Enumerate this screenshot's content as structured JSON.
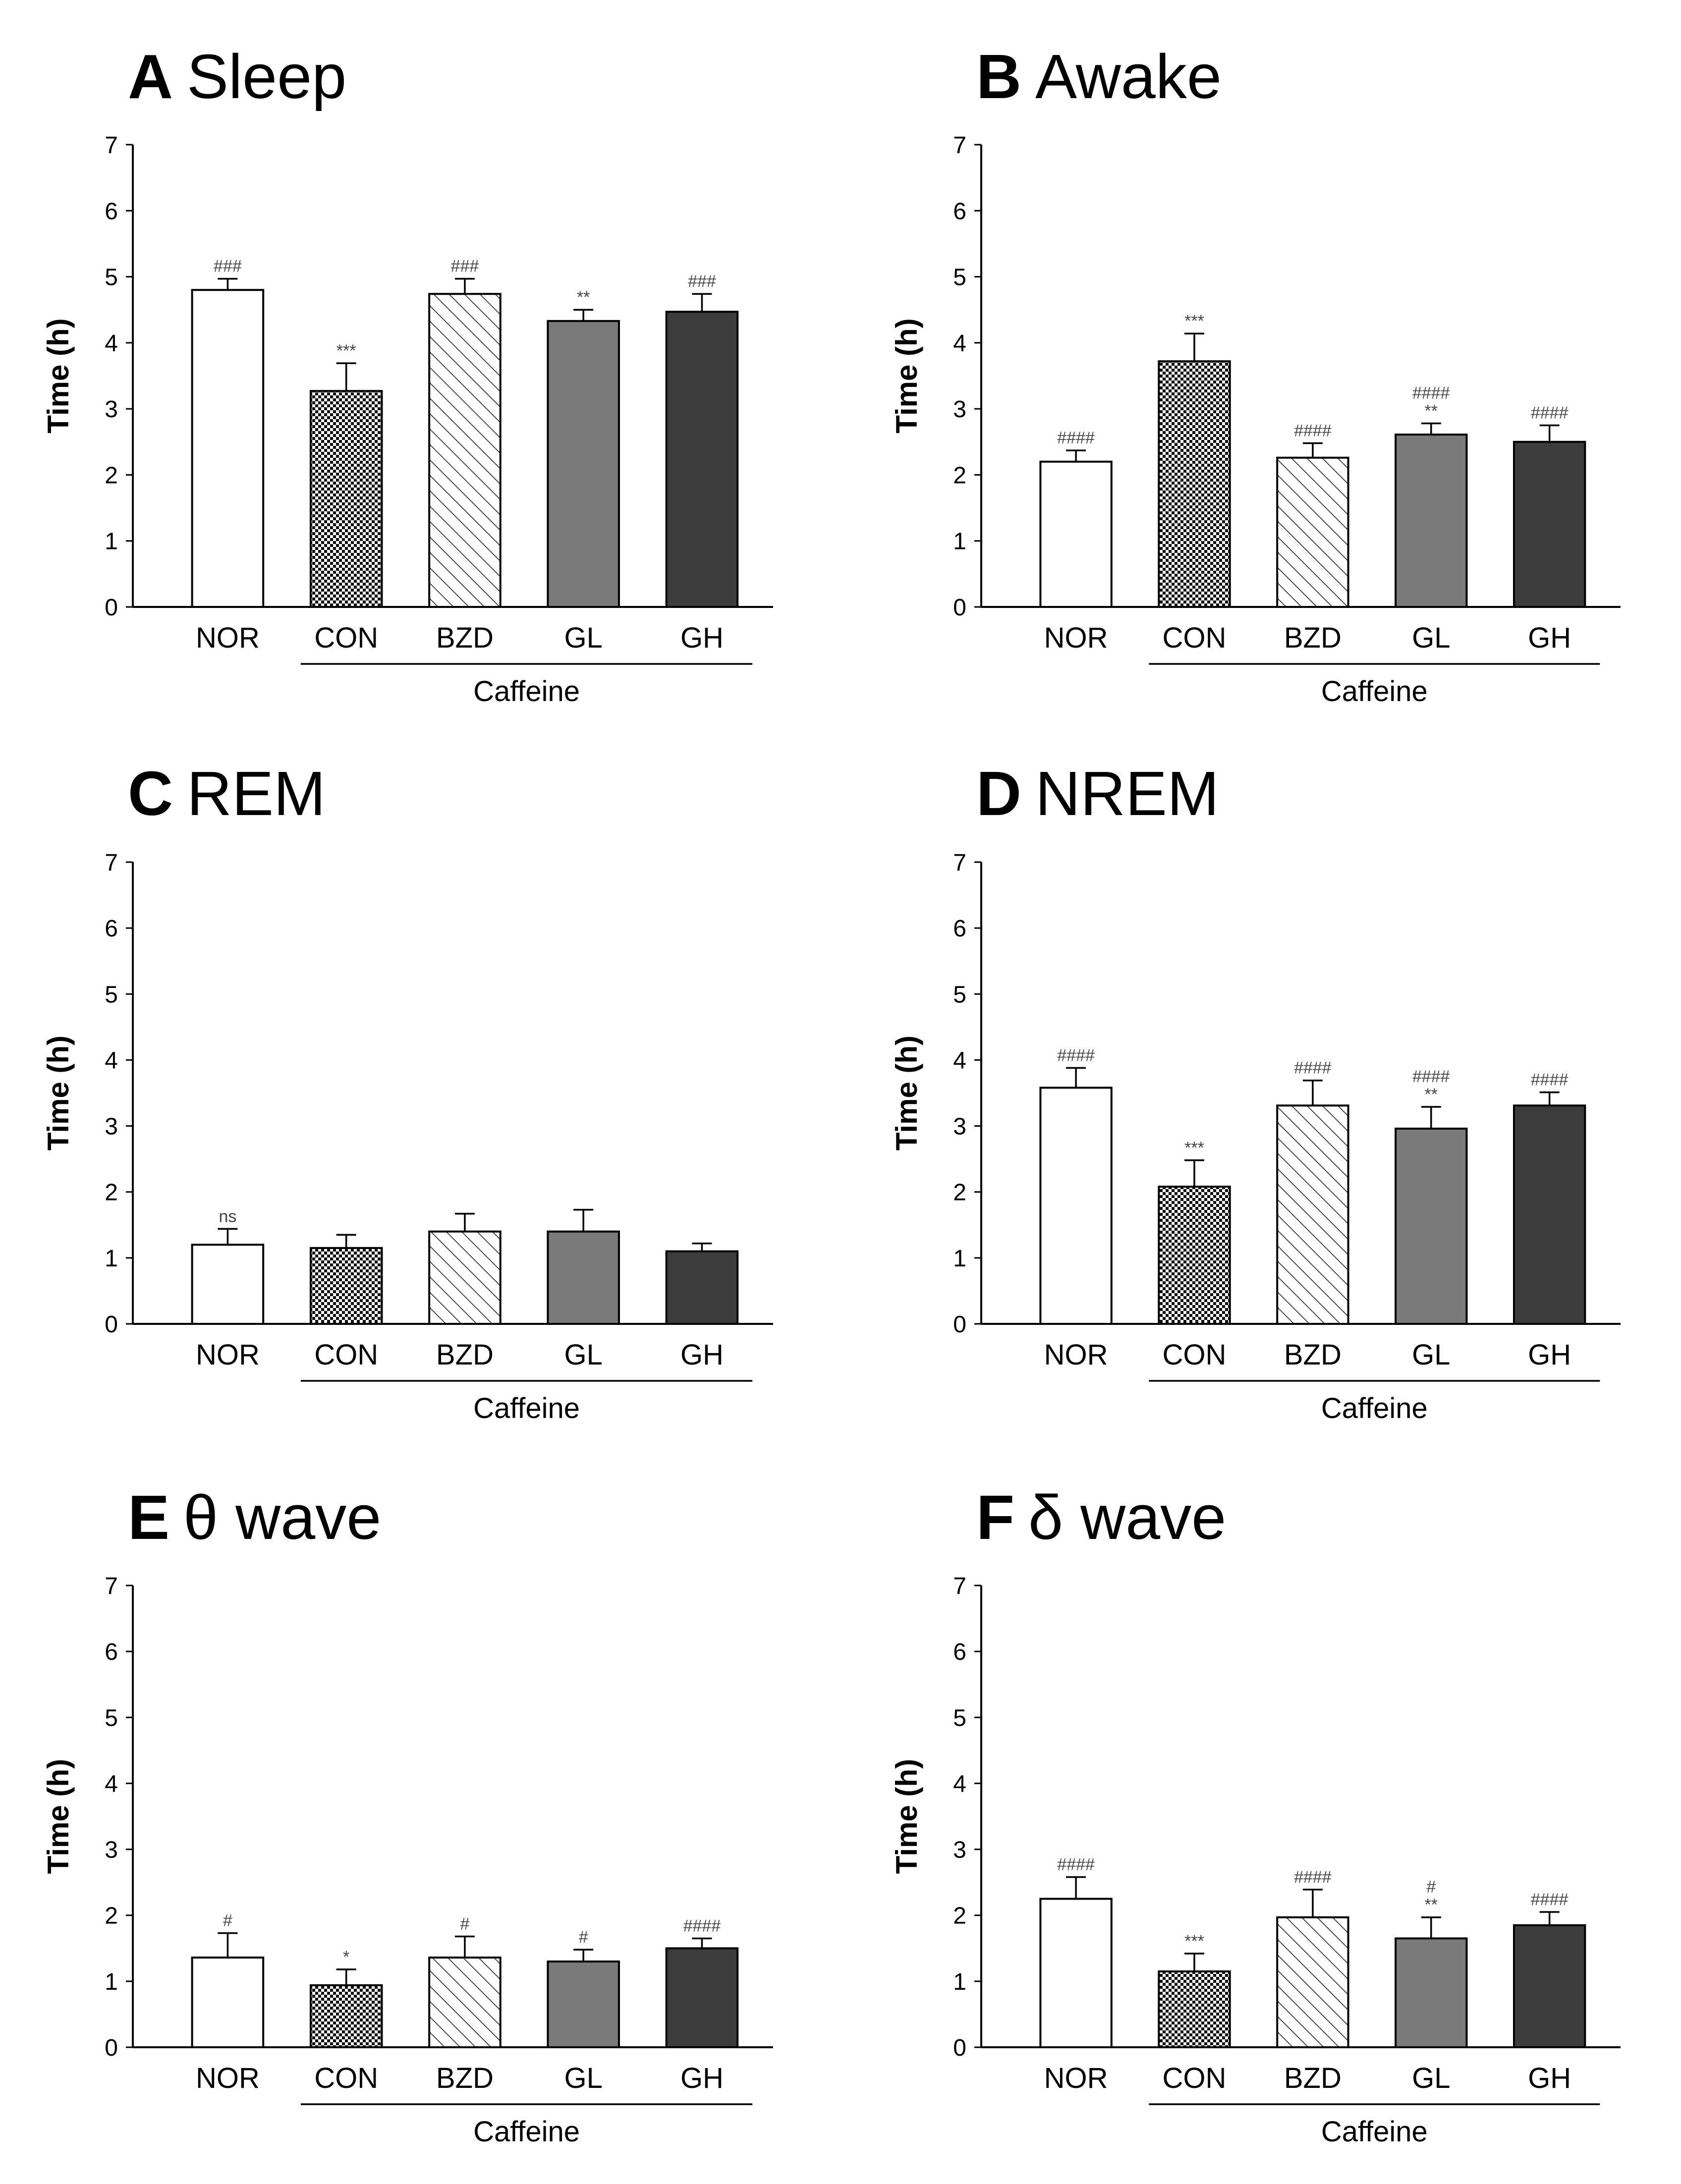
{
  "chart_data": [
    {
      "type": "bar",
      "panel": "A",
      "title": "Sleep",
      "ylabel": "Time (h)",
      "ylim": [
        0,
        7
      ],
      "yticks": [
        "0",
        "1",
        "2",
        "3",
        "4",
        "5",
        "6",
        "7"
      ],
      "categories": [
        "NOR",
        "CON",
        "BZD",
        "GL",
        "GH"
      ],
      "values": [
        4.8,
        3.27,
        4.74,
        4.33,
        4.47
      ],
      "errors": [
        0.17,
        0.42,
        0.23,
        0.17,
        0.27
      ],
      "annotations": [
        [
          "###"
        ],
        [
          "***"
        ],
        [
          "###"
        ],
        [
          "**"
        ],
        [
          "###"
        ]
      ],
      "group_label": "Caffeine"
    },
    {
      "type": "bar",
      "panel": "B",
      "title": "Awake",
      "ylabel": "Time (h)",
      "ylim": [
        0,
        7
      ],
      "yticks": [
        "0",
        "1",
        "2",
        "3",
        "4",
        "5",
        "6",
        "7"
      ],
      "categories": [
        "NOR",
        "CON",
        "BZD",
        "GL",
        "GH"
      ],
      "values": [
        2.2,
        3.72,
        2.26,
        2.61,
        2.5
      ],
      "errors": [
        0.17,
        0.42,
        0.22,
        0.17,
        0.25
      ],
      "annotations": [
        [
          "####"
        ],
        [
          "***"
        ],
        [
          "####"
        ],
        [
          "####",
          "**"
        ],
        [
          "####"
        ]
      ],
      "group_label": "Caffeine"
    },
    {
      "type": "bar",
      "panel": "C",
      "title": "REM",
      "ylabel": "Time (h)",
      "ylim": [
        0,
        7
      ],
      "yticks": [
        "0",
        "1",
        "2",
        "3",
        "4",
        "5",
        "6",
        "7"
      ],
      "categories": [
        "NOR",
        "CON",
        "BZD",
        "GL",
        "GH"
      ],
      "values": [
        1.2,
        1.15,
        1.4,
        1.4,
        1.1
      ],
      "errors": [
        0.24,
        0.2,
        0.27,
        0.33,
        0.12
      ],
      "annotations": [
        [
          "ns"
        ],
        [],
        [],
        [],
        []
      ],
      "group_label": "Caffeine"
    },
    {
      "type": "bar",
      "panel": "D",
      "title": "NREM",
      "ylabel": "Time (h)",
      "ylim": [
        0,
        7
      ],
      "yticks": [
        "0",
        "1",
        "2",
        "3",
        "4",
        "5",
        "6",
        "7"
      ],
      "categories": [
        "NOR",
        "CON",
        "BZD",
        "GL",
        "GH"
      ],
      "values": [
        3.58,
        2.08,
        3.31,
        2.96,
        3.31
      ],
      "errors": [
        0.3,
        0.4,
        0.38,
        0.33,
        0.2
      ],
      "annotations": [
        [
          "####"
        ],
        [
          "***"
        ],
        [
          "####"
        ],
        [
          "####",
          "**"
        ],
        [
          "####"
        ]
      ],
      "group_label": "Caffeine"
    },
    {
      "type": "bar",
      "panel": "E",
      "title": "θ wave",
      "ylabel": "Time (h)",
      "ylim": [
        0,
        7
      ],
      "yticks": [
        "0",
        "1",
        "2",
        "3",
        "4",
        "5",
        "6",
        "7"
      ],
      "categories": [
        "NOR",
        "CON",
        "BZD",
        "GL",
        "GH"
      ],
      "values": [
        1.36,
        0.94,
        1.36,
        1.3,
        1.5
      ],
      "errors": [
        0.37,
        0.24,
        0.32,
        0.18,
        0.15
      ],
      "annotations": [
        [
          "#"
        ],
        [
          "*"
        ],
        [
          "#"
        ],
        [
          "#"
        ],
        [
          "####"
        ]
      ],
      "group_label": "Caffeine"
    },
    {
      "type": "bar",
      "panel": "F",
      "title": "δ wave",
      "ylabel": "Time (h)",
      "ylim": [
        0,
        7
      ],
      "yticks": [
        "0",
        "1",
        "2",
        "3",
        "4",
        "5",
        "6",
        "7"
      ],
      "categories": [
        "NOR",
        "CON",
        "BZD",
        "GL",
        "GH"
      ],
      "values": [
        2.25,
        1.15,
        1.97,
        1.65,
        1.85
      ],
      "errors": [
        0.33,
        0.27,
        0.42,
        0.32,
        0.2
      ],
      "annotations": [
        [
          "####"
        ],
        [
          "***"
        ],
        [
          "####"
        ],
        [
          "#",
          "**"
        ],
        [
          "####"
        ]
      ],
      "group_label": "Caffeine"
    }
  ],
  "colors": {
    "axis": "#000000",
    "nor_fill": "#ffffff",
    "checker_dark": "#111111",
    "hatch_line": "#333333",
    "gl_fill": "#7a7a7a",
    "gh_fill": "#3c3c3c",
    "annotation": "#444444"
  }
}
